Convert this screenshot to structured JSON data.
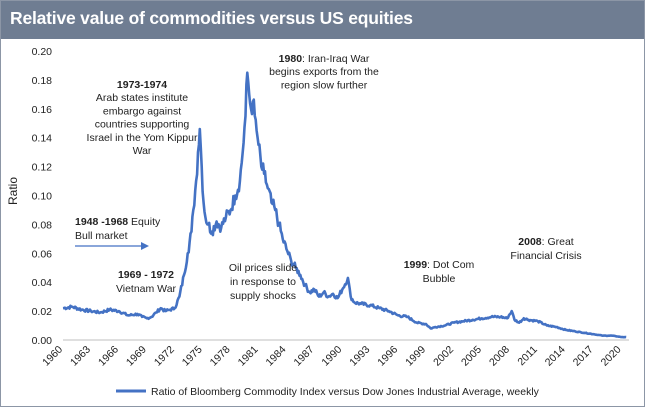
{
  "chart_data": {
    "type": "line",
    "title": "Relative value of commodities versus US equities",
    "ylabel": "Ratio",
    "xlabel": "",
    "ylim": [
      0,
      0.2
    ],
    "xlim": [
      1960,
      2020.8
    ],
    "yticks": [
      "0.00",
      "0.02",
      "0.04",
      "0.06",
      "0.08",
      "0.10",
      "0.12",
      "0.14",
      "0.16",
      "0.18",
      "0.20"
    ],
    "xticks": [
      "1960",
      "1963",
      "1966",
      "1969",
      "1972",
      "1975",
      "1978",
      "1981",
      "1984",
      "1987",
      "1990",
      "1993",
      "1996",
      "1999",
      "2002",
      "2005",
      "2008",
      "2011",
      "2014",
      "2017",
      "2020"
    ],
    "legend": "Ratio of Bloomberg Commodity Index versus Dow Jones Industrial Average, weekly",
    "legend_position": "bottom",
    "color": "#4472c4",
    "series": [
      {
        "name": "Ratio of Bloomberg Commodity Index versus Dow Jones Industrial Average, weekly",
        "x": [
          1960,
          1961,
          1962,
          1963,
          1964,
          1965,
          1966,
          1967,
          1968,
          1968.5,
          1969,
          1969.5,
          1970,
          1970.5,
          1971,
          1971.5,
          1972,
          1972.5,
          1973,
          1973.4,
          1973.8,
          1974,
          1974.3,
          1974.5,
          1974.7,
          1974.9,
          1975.1,
          1975.3,
          1975.6,
          1976,
          1976.5,
          1977,
          1977.5,
          1978,
          1978.5,
          1979,
          1979.3,
          1979.6,
          1979.8,
          1980,
          1980.2,
          1980.4,
          1980.6,
          1980.8,
          1981,
          1981.3,
          1981.6,
          1982,
          1982.4,
          1982.8,
          1983.2,
          1983.6,
          1984,
          1984.5,
          1985,
          1985.5,
          1986,
          1986.5,
          1987,
          1987.5,
          1988,
          1988.5,
          1989,
          1989.5,
          1990,
          1990.6,
          1990.9,
          1991.3,
          1992,
          1993,
          1994,
          1995,
          1996,
          1997,
          1998,
          1999,
          1999.5,
          2000,
          2001,
          2002,
          2003,
          2004,
          2005,
          2006,
          2007,
          2007.7,
          2008.2,
          2008.5,
          2009,
          2009.5,
          2010,
          2011,
          2012,
          2013,
          2014,
          2015,
          2016,
          2017,
          2018,
          2019,
          2020,
          2020.5
        ],
        "values": [
          0.022,
          0.023,
          0.021,
          0.02,
          0.019,
          0.021,
          0.02,
          0.017,
          0.018,
          0.016,
          0.015,
          0.016,
          0.019,
          0.022,
          0.02,
          0.021,
          0.022,
          0.03,
          0.045,
          0.06,
          0.075,
          0.09,
          0.11,
          0.13,
          0.146,
          0.12,
          0.095,
          0.085,
          0.08,
          0.075,
          0.082,
          0.078,
          0.085,
          0.09,
          0.1,
          0.11,
          0.13,
          0.155,
          0.185,
          0.17,
          0.16,
          0.165,
          0.155,
          0.145,
          0.135,
          0.12,
          0.115,
          0.105,
          0.095,
          0.09,
          0.08,
          0.07,
          0.063,
          0.055,
          0.05,
          0.045,
          0.038,
          0.033,
          0.035,
          0.03,
          0.033,
          0.03,
          0.032,
          0.029,
          0.035,
          0.043,
          0.03,
          0.026,
          0.025,
          0.024,
          0.022,
          0.02,
          0.017,
          0.016,
          0.012,
          0.011,
          0.008,
          0.009,
          0.01,
          0.012,
          0.013,
          0.014,
          0.015,
          0.016,
          0.016,
          0.015,
          0.02,
          0.014,
          0.012,
          0.015,
          0.014,
          0.013,
          0.01,
          0.009,
          0.007,
          0.006,
          0.005,
          0.004,
          0.003,
          0.003,
          0.002,
          0.002
        ]
      }
    ],
    "annotations": [
      {
        "id": "a1",
        "lines": [
          {
            "bold": "1948 -1968",
            "text": " Equity"
          },
          {
            "bold": "",
            "text": "Bull market"
          }
        ]
      },
      {
        "id": "a2",
        "lines": [
          {
            "bold": "1973-1974",
            "text": ""
          },
          {
            "bold": "",
            "text": "Arab states institute"
          },
          {
            "bold": "",
            "text": "embargo against"
          },
          {
            "bold": "",
            "text": "countries supporting"
          },
          {
            "bold": "",
            "text": "Israel in the Yom Kippur"
          },
          {
            "bold": "",
            "text": "War"
          }
        ]
      },
      {
        "id": "a3",
        "lines": [
          {
            "bold": "1969 - 1972",
            "text": ""
          },
          {
            "bold": "",
            "text": "Vietnam War"
          }
        ]
      },
      {
        "id": "a4",
        "lines": [
          {
            "bold": "1980",
            "text": ": Iran-Iraq War"
          },
          {
            "bold": "",
            "text": "begins exports from the"
          },
          {
            "bold": "",
            "text": "region slow further"
          }
        ]
      },
      {
        "id": "a5",
        "lines": [
          {
            "bold": "",
            "text": "Oil prices slide"
          },
          {
            "bold": "",
            "text": "in response to"
          },
          {
            "bold": "",
            "text": "supply shocks"
          }
        ]
      },
      {
        "id": "a6",
        "lines": [
          {
            "bold": "1999",
            "text": ": Dot Com"
          },
          {
            "bold": "",
            "text": "Bubble"
          }
        ]
      },
      {
        "id": "a7",
        "lines": [
          {
            "bold": "2008",
            "text": ": Great"
          },
          {
            "bold": "",
            "text": "Financial Crisis"
          }
        ]
      }
    ]
  }
}
